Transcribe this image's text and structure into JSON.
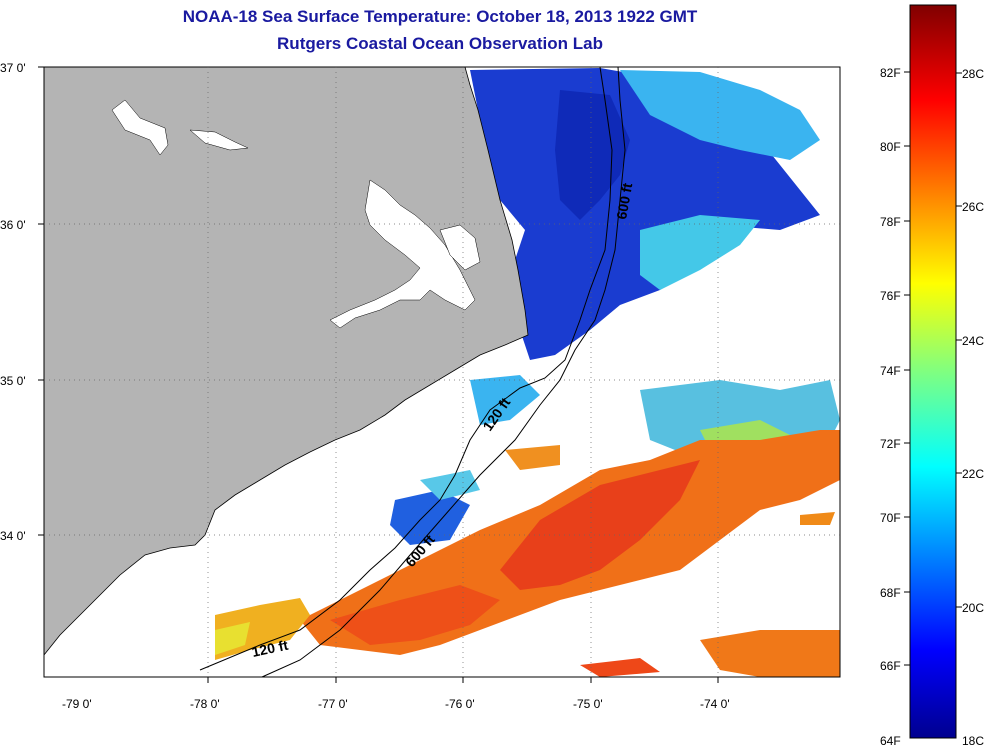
{
  "title_line1": "NOAA-18 Sea Surface Temperature:  October 18, 2013 1922 GMT",
  "title_line2": "Rutgers Coastal Ocean Observation Lab",
  "lat_labels": [
    "37 0'",
    "36 0'",
    "35 0'",
    "34 0'"
  ],
  "lon_labels": [
    "-79 0'",
    "-78 0'",
    "-77 0'",
    "-76 0'",
    "-75 0'",
    "-74 0'"
  ],
  "contour_labels": [
    "600 ft",
    "120 ft",
    "600 ft",
    "120 ft"
  ],
  "colorbar": {
    "fahrenheit": [
      "82F",
      "80F",
      "78F",
      "76F",
      "74F",
      "72F",
      "70F",
      "68F",
      "66F",
      "64F"
    ],
    "celsius": [
      "28C",
      "26C",
      "24C",
      "22C",
      "20C",
      "18C"
    ]
  },
  "colors": {
    "land": "#b4b4b4",
    "title": "#1a1aa0",
    "cold": "#1438d8",
    "cool": "#3ab4f0",
    "mid": "#d8e830",
    "warm": "#f07818",
    "hot": "#e82010"
  }
}
